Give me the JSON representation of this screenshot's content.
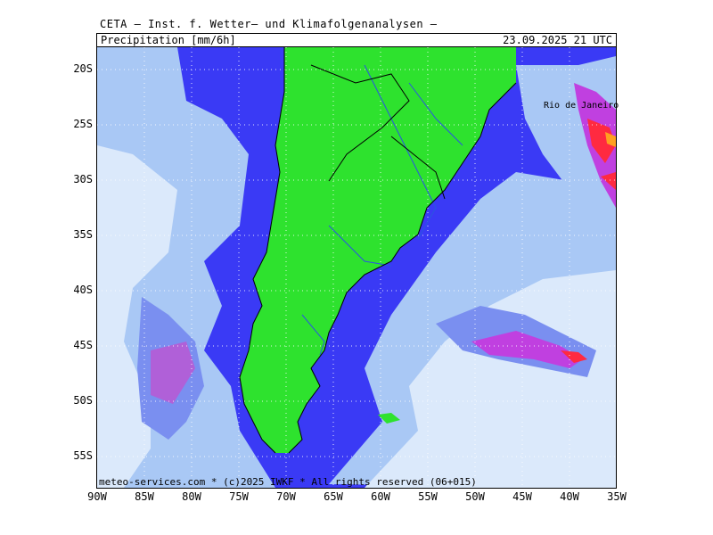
{
  "header": {
    "title": "CETA – Inst. f. Wetter– und Klimafolgenanalysen –",
    "variable": "Precipitation [mm/6h]",
    "valid_time": "23.09.2025 21 UTC"
  },
  "footer": {
    "credit": "meteo-services.com * (c)2025 IWKF * All rights reserved (06+015)"
  },
  "axes": {
    "lat_labels": [
      "20S",
      "25S",
      "30S",
      "35S",
      "40S",
      "45S",
      "50S",
      "55S"
    ],
    "lon_labels": [
      "90W",
      "85W",
      "80W",
      "75W",
      "70W",
      "65W",
      "60W",
      "55W",
      "50W",
      "45W",
      "40W",
      "35W"
    ]
  },
  "places": {
    "city": "Rio de Janeiro"
  },
  "colors": {
    "land": "#2ee22e",
    "dry_sea": "#3a3af5",
    "light_precip": "#dbe9fb",
    "med_precip": "#a9c8f5",
    "heavy_precip": "#7a8ff0",
    "very_heavy": "#c040e0",
    "extreme": "#ff2a40",
    "peak": "#ffa020",
    "grid": "#ffffff"
  }
}
